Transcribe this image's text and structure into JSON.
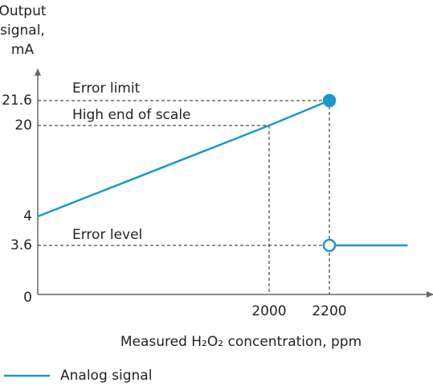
{
  "chart_data": {
    "type": "line",
    "y_label": [
      "Output",
      "signal,",
      "mA"
    ],
    "x_label": "Measured H₂O₂ concentration, ppm",
    "annotations": [
      "Error limit",
      "High end of scale",
      "Error level"
    ],
    "xlim": [
      0,
      2600
    ],
    "xticks": [
      2000,
      2200
    ],
    "ylim": [
      0,
      23
    ],
    "yticks": [
      0,
      3.6,
      4,
      20,
      21.6
    ],
    "x": [
      0,
      2000,
      2200,
      2200,
      2200,
      2460
    ],
    "series": [
      {
        "name": "Analog signal",
        "color": "#1b98c7",
        "values": [
          4,
          20,
          21.6,
          null,
          3.6,
          3.6
        ]
      }
    ]
  }
}
